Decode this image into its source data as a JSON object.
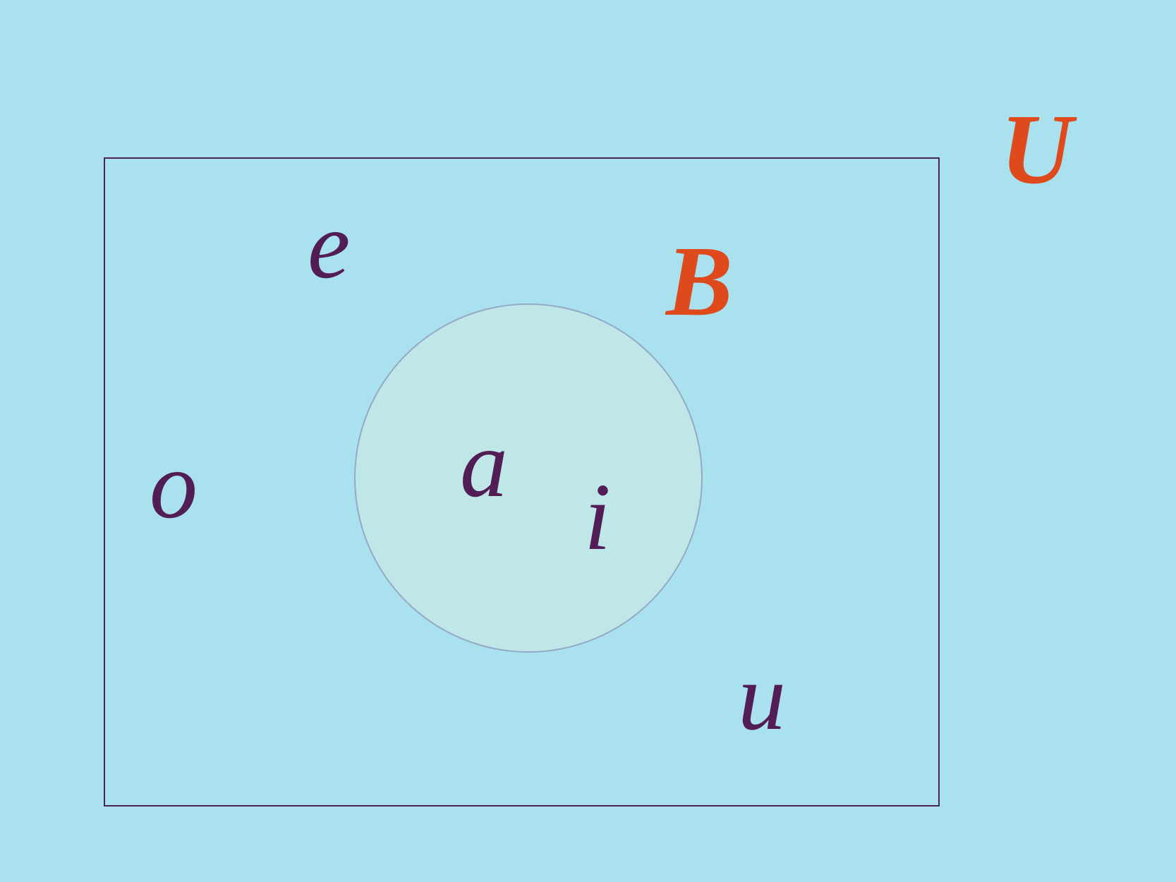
{
  "diagram": {
    "universe_label": "U",
    "set_label": "B",
    "elements_inside_set": [
      "a",
      "i"
    ],
    "elements_outside_set": [
      "e",
      "o",
      "u"
    ],
    "colors": {
      "background": "#aae1ee",
      "set_fill": "#c0e7e8",
      "set_outline": "#93a9c6",
      "universe_border": "#4e2356",
      "element_text": "#521c55",
      "set_label_text": "#de4a1c"
    }
  }
}
